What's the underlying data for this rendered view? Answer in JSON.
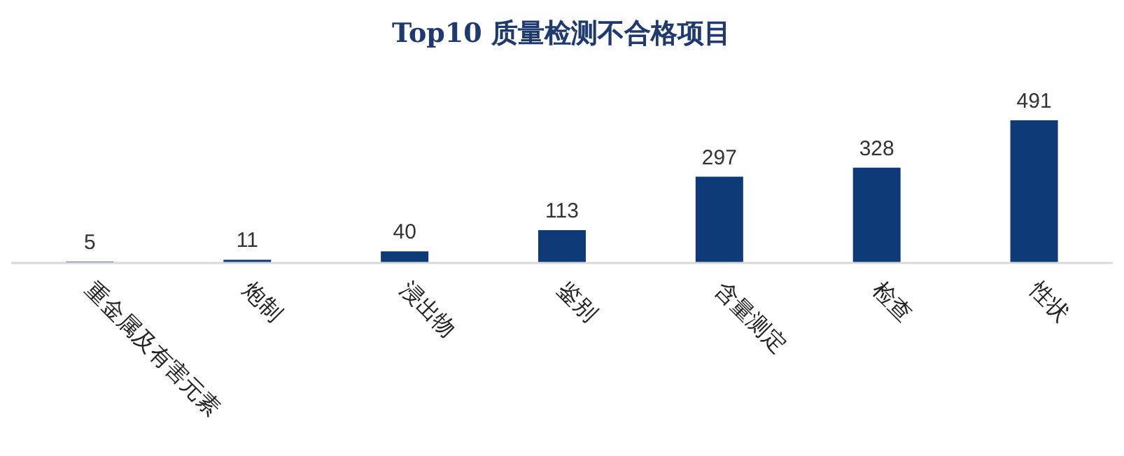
{
  "chart_data": {
    "type": "bar",
    "title": "Top10 质量检测不合格项目",
    "categories": [
      "重金属及有害元素",
      "炮制",
      "浸出物",
      "鉴别",
      "含量测定",
      "检查",
      "性状"
    ],
    "values": [
      5,
      11,
      40,
      113,
      297,
      328,
      491
    ],
    "color": "#0e3a78",
    "data_labels": true
  }
}
